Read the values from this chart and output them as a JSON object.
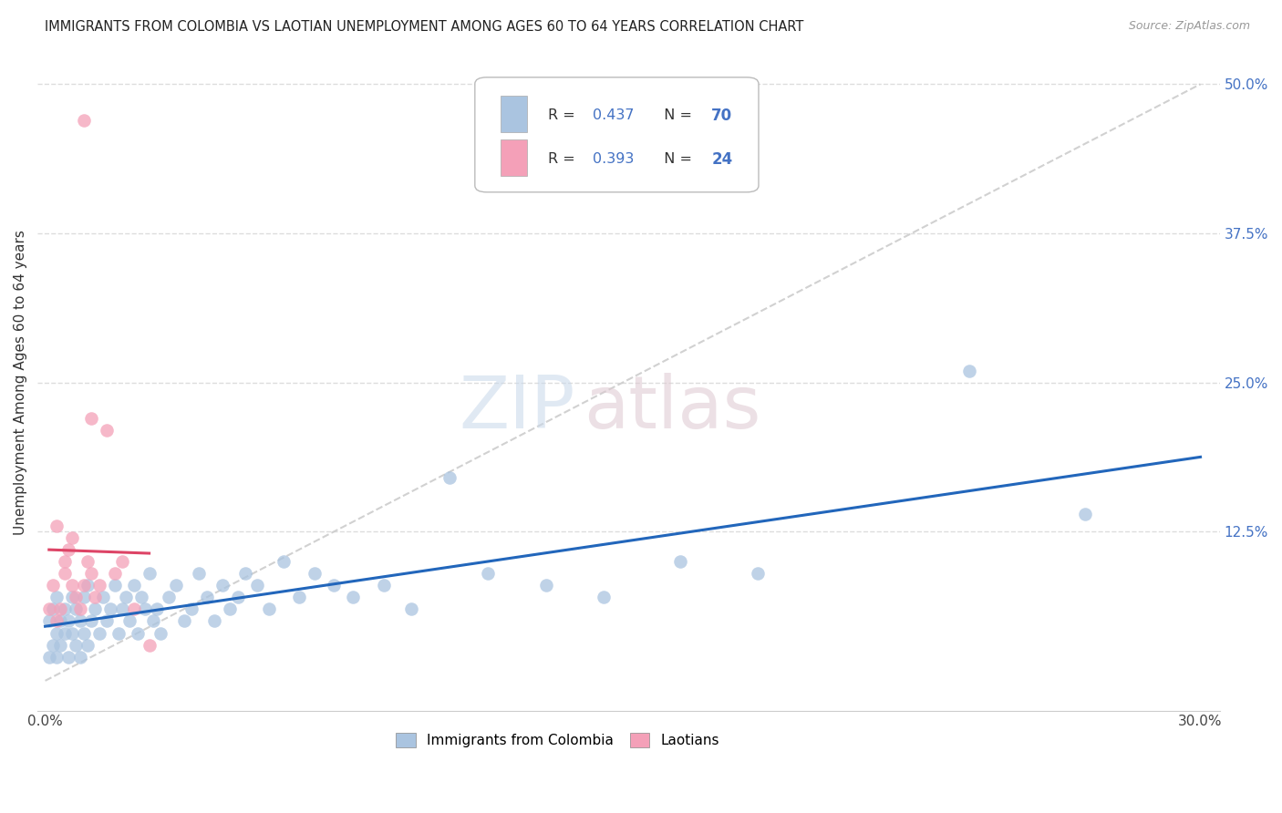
{
  "title": "IMMIGRANTS FROM COLOMBIA VS LAOTIAN UNEMPLOYMENT AMONG AGES 60 TO 64 YEARS CORRELATION CHART",
  "source": "Source: ZipAtlas.com",
  "ylabel": "Unemployment Among Ages 60 to 64 years",
  "xlim": [
    -0.002,
    0.305
  ],
  "ylim": [
    -0.025,
    0.525
  ],
  "r_colombia": 0.437,
  "n_colombia": 70,
  "r_laotian": 0.393,
  "n_laotian": 24,
  "color_colombia": "#aac4e0",
  "color_laotian": "#f4a0b8",
  "color_line_colombia": "#2266bb",
  "color_line_laotian": "#dd4466",
  "color_diag_line": "#cccccc",
  "colombia_x": [
    0.001,
    0.001,
    0.002,
    0.002,
    0.003,
    0.003,
    0.003,
    0.004,
    0.004,
    0.005,
    0.005,
    0.006,
    0.006,
    0.007,
    0.007,
    0.008,
    0.008,
    0.009,
    0.009,
    0.01,
    0.01,
    0.011,
    0.011,
    0.012,
    0.013,
    0.014,
    0.015,
    0.016,
    0.017,
    0.018,
    0.019,
    0.02,
    0.021,
    0.022,
    0.023,
    0.024,
    0.025,
    0.026,
    0.027,
    0.028,
    0.029,
    0.03,
    0.032,
    0.034,
    0.036,
    0.038,
    0.04,
    0.042,
    0.044,
    0.046,
    0.048,
    0.05,
    0.052,
    0.055,
    0.058,
    0.062,
    0.066,
    0.07,
    0.075,
    0.08,
    0.088,
    0.095,
    0.105,
    0.115,
    0.13,
    0.145,
    0.165,
    0.185,
    0.24,
    0.27
  ],
  "colombia_y": [
    0.02,
    0.05,
    0.03,
    0.06,
    0.04,
    0.02,
    0.07,
    0.03,
    0.05,
    0.04,
    0.06,
    0.05,
    0.02,
    0.07,
    0.04,
    0.03,
    0.06,
    0.05,
    0.02,
    0.04,
    0.07,
    0.03,
    0.08,
    0.05,
    0.06,
    0.04,
    0.07,
    0.05,
    0.06,
    0.08,
    0.04,
    0.06,
    0.07,
    0.05,
    0.08,
    0.04,
    0.07,
    0.06,
    0.09,
    0.05,
    0.06,
    0.04,
    0.07,
    0.08,
    0.05,
    0.06,
    0.09,
    0.07,
    0.05,
    0.08,
    0.06,
    0.07,
    0.09,
    0.08,
    0.06,
    0.1,
    0.07,
    0.09,
    0.08,
    0.07,
    0.08,
    0.06,
    0.17,
    0.09,
    0.08,
    0.07,
    0.1,
    0.09,
    0.26,
    0.14
  ],
  "laotian_x": [
    0.001,
    0.002,
    0.003,
    0.003,
    0.004,
    0.005,
    0.005,
    0.006,
    0.007,
    0.007,
    0.008,
    0.009,
    0.01,
    0.011,
    0.012,
    0.013,
    0.014,
    0.016,
    0.018,
    0.02,
    0.023,
    0.027,
    0.01,
    0.012
  ],
  "laotian_y": [
    0.06,
    0.08,
    0.05,
    0.13,
    0.06,
    0.1,
    0.09,
    0.11,
    0.08,
    0.12,
    0.07,
    0.06,
    0.08,
    0.1,
    0.09,
    0.07,
    0.08,
    0.21,
    0.09,
    0.1,
    0.06,
    0.03,
    0.47,
    0.22
  ]
}
